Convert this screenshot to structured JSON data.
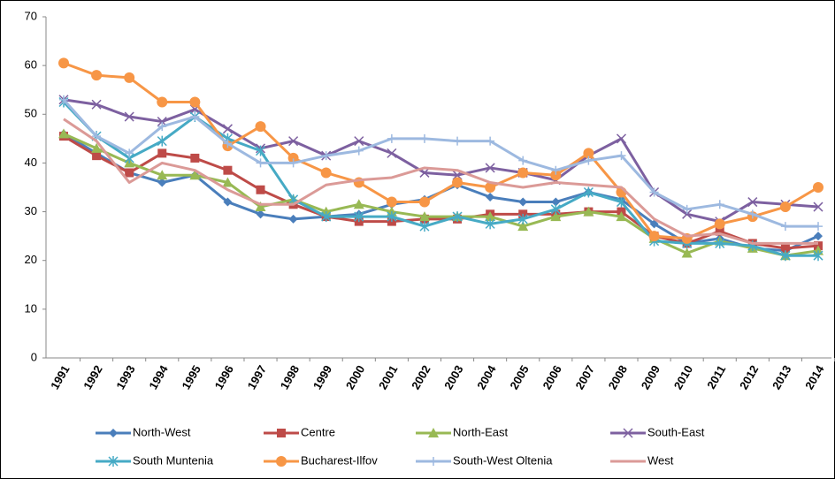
{
  "chart_data": {
    "type": "line",
    "categories": [
      "1991",
      "1992",
      "1993",
      "1994",
      "1995",
      "1996",
      "1997",
      "1998",
      "1999",
      "2000",
      "2001",
      "2002",
      "2003",
      "2004",
      "2005",
      "2006",
      "2007",
      "2008",
      "2009",
      "2010",
      "2011",
      "2012",
      "2013",
      "2014"
    ],
    "ylim": [
      0,
      70
    ],
    "yticks": [
      0,
      10,
      20,
      30,
      40,
      50,
      60,
      70
    ],
    "grid": false,
    "legend": "bottom",
    "series": [
      {
        "name": "North-West",
        "color": "#4a7ebb",
        "marker": "diamond",
        "values": [
          46,
          42,
          38,
          36,
          37.5,
          32,
          29.5,
          28.5,
          29,
          29.5,
          31.5,
          32.5,
          35.5,
          33,
          32,
          32,
          34,
          32.5,
          27.5,
          23.5,
          24.5,
          22.5,
          22,
          25
        ]
      },
      {
        "name": "Centre",
        "color": "#be4b48",
        "marker": "square",
        "values": [
          45.5,
          41.5,
          38,
          42,
          41,
          38.5,
          34.5,
          31.5,
          29,
          28,
          28,
          28.5,
          28.5,
          29.5,
          29.5,
          29.5,
          30,
          30,
          25,
          23.5,
          26,
          23.5,
          22.5,
          23
        ]
      },
      {
        "name": "North-East",
        "color": "#98b954",
        "marker": "triangle",
        "values": [
          46,
          43,
          40,
          37.5,
          37.5,
          36,
          31,
          32.5,
          30,
          31.5,
          30,
          29,
          29,
          29,
          27,
          29,
          30,
          29,
          24.5,
          21.5,
          24,
          22.5,
          21,
          22
        ]
      },
      {
        "name": "South-East",
        "color": "#7d60a0",
        "marker": "x",
        "values": [
          53,
          52,
          49.5,
          48.5,
          51,
          47,
          43,
          44.5,
          41.5,
          44.5,
          42,
          38,
          37.5,
          39,
          38,
          36.5,
          41.5,
          45,
          34,
          29.5,
          28,
          32,
          31.5,
          31
        ]
      },
      {
        "name": "South Muntenia",
        "color": "#46aac5",
        "marker": "star",
        "values": [
          52.5,
          45.5,
          41,
          44.5,
          49.5,
          45,
          42.5,
          32.5,
          29,
          29,
          29,
          27,
          29,
          27.5,
          28.5,
          30.5,
          34,
          32,
          24,
          23.5,
          23.5,
          23,
          21,
          21
        ]
      },
      {
        "name": "Bucharest-Ilfov",
        "color": "#f79646",
        "marker": "circle",
        "values": [
          60.5,
          58,
          57.5,
          52.5,
          52.5,
          43.5,
          47.5,
          41,
          38,
          36,
          32,
          32,
          36,
          35,
          38,
          37.5,
          42,
          34,
          25,
          24.5,
          27.5,
          29,
          31,
          35
        ]
      },
      {
        "name": "South-West Oltenia",
        "color": "#9db9e0",
        "marker": "plus",
        "values": [
          53,
          45.5,
          42,
          47.5,
          49.5,
          44,
          40,
          40,
          41.5,
          42.5,
          45,
          45,
          44.5,
          44.5,
          40.5,
          38.5,
          40.5,
          41.5,
          34,
          30.5,
          31.5,
          29.5,
          27,
          27
        ]
      },
      {
        "name": "West",
        "color": "#db9a97",
        "marker": "none",
        "values": [
          49,
          44.5,
          36,
          40,
          38.5,
          34.5,
          31.5,
          31.5,
          35.5,
          36.5,
          37,
          39,
          38.5,
          36,
          35,
          36,
          35.5,
          35,
          28.5,
          25,
          25.5,
          23.5,
          23.5,
          23.5
        ]
      }
    ]
  }
}
